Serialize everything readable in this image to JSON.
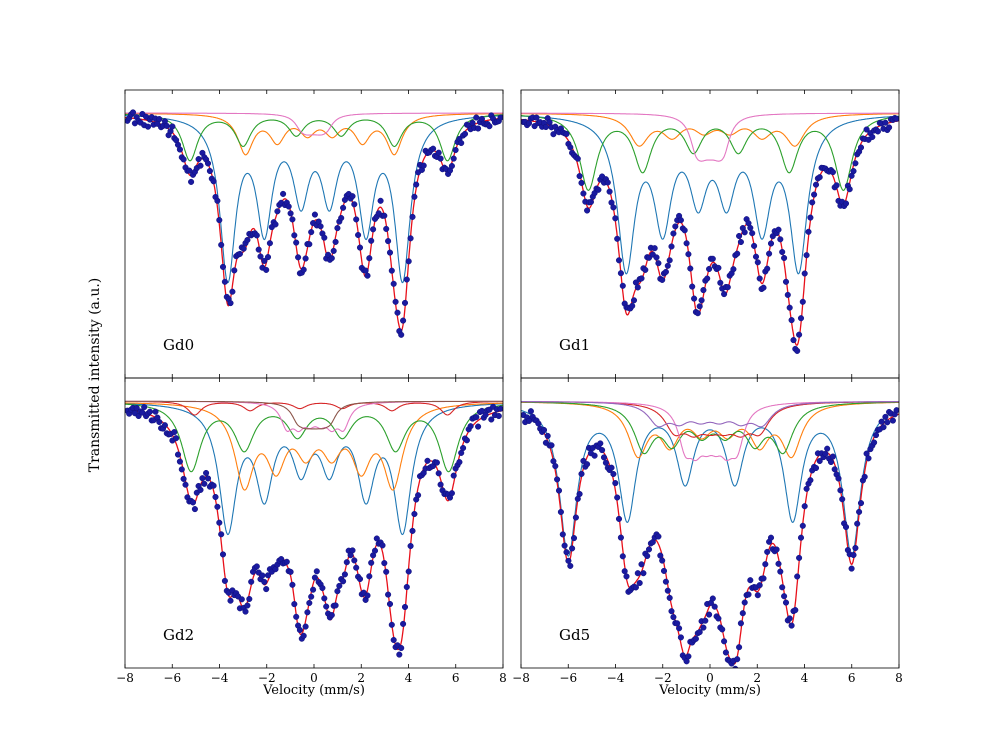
{
  "figure": {
    "ylabel": "Transmitted intensity (a.u.)",
    "xlabel": "Velocity (mm/s)"
  },
  "colors": {
    "data_points": "#1a1aa0",
    "data_edge": "#10107a",
    "total_fit": "#e8101a",
    "components": [
      "#1f77b4",
      "#ff7f0e",
      "#2ca02c",
      "#d62728",
      "#e377c2",
      "#9467bd",
      "#8c564b"
    ]
  },
  "chart_data": [
    {
      "type": "scatter",
      "panel": "top-left",
      "label": "Gd0",
      "xlim": [
        -8,
        8
      ],
      "xticks": [
        "−8",
        "−6",
        "−4",
        "−2",
        "0",
        "2",
        "4",
        "6",
        "8"
      ],
      "xlabel": "",
      "subspectra": [
        {
          "color": "#1f77b4",
          "center": 0.05,
          "hf": [
            7.4,
            4.3,
            1.2
          ],
          "w": 0.4,
          "a": [
            0.62,
            0.42,
            0.3
          ]
        },
        {
          "color": "#ff7f0e",
          "center": 0.25,
          "hf": [
            6.3,
            3.6,
            1.05
          ],
          "w": 0.4,
          "a": [
            0.15,
            0.1,
            0.07
          ]
        },
        {
          "color": "#2ca02c",
          "center": 0.2,
          "hf": [
            10.9,
            6.4,
            1.9
          ],
          "w": 0.4,
          "a": [
            0.18,
            0.12,
            0.08
          ]
        },
        {
          "color": "#e377c2",
          "center": 0.0,
          "hf": [
            1.1,
            0.6,
            0.2
          ],
          "w": 0.3,
          "a": [
            0.04,
            0.03,
            0.02
          ]
        }
      ]
    },
    {
      "type": "scatter",
      "panel": "top-right",
      "label": "Gd1",
      "xlim": [
        -8,
        8
      ],
      "xticks": [
        "−8",
        "−6",
        "−4",
        "−2",
        "0",
        "2",
        "4",
        "6",
        "8"
      ],
      "xlabel": "",
      "subspectra": [
        {
          "color": "#1f77b4",
          "center": 0.1,
          "hf": [
            7.3,
            4.2,
            1.2
          ],
          "w": 0.45,
          "a": [
            0.6,
            0.42,
            0.3
          ]
        },
        {
          "color": "#ff7f0e",
          "center": 0.3,
          "hf": [
            6.6,
            3.8,
            1.1
          ],
          "w": 0.5,
          "a": [
            0.12,
            0.08,
            0.06
          ]
        },
        {
          "color": "#2ca02c",
          "center": 0.25,
          "hf": [
            10.8,
            6.2,
            1.9
          ],
          "w": 0.45,
          "a": [
            0.3,
            0.22,
            0.14
          ]
        },
        {
          "color": "#e377c2",
          "center": 0.0,
          "hf": [
            1.2,
            0.7,
            0.2
          ],
          "w": 0.3,
          "a": [
            0.1,
            0.07,
            0.05
          ]
        }
      ]
    },
    {
      "type": "scatter",
      "panel": "bottom-left",
      "label": "Gd2",
      "xlim": [
        -8,
        8
      ],
      "xticks": [
        "−8",
        "−6",
        "−4",
        "−2",
        "0",
        "2",
        "4",
        "6",
        "8"
      ],
      "xlabel": "Velocity (mm/s)",
      "subspectra": [
        {
          "color": "#1f77b4",
          "center": 0.05,
          "hf": [
            7.4,
            4.3,
            1.2
          ],
          "w": 0.45,
          "a": [
            0.55,
            0.38,
            0.26
          ]
        },
        {
          "color": "#ff7f0e",
          "center": 0.2,
          "hf": [
            6.3,
            3.6,
            1.1
          ],
          "w": 0.5,
          "a": [
            0.35,
            0.25,
            0.18
          ]
        },
        {
          "color": "#2ca02c",
          "center": 0.25,
          "hf": [
            10.9,
            6.4,
            1.9
          ],
          "w": 0.5,
          "a": [
            0.3,
            0.2,
            0.14
          ]
        },
        {
          "color": "#d62728",
          "center": 0.3,
          "hf": [
            10.7,
            6.0,
            1.8
          ],
          "w": 0.35,
          "a": [
            0.06,
            0.04,
            0.03
          ]
        },
        {
          "color": "#e377c2",
          "center": 0.05,
          "hf": [
            2.4,
            1.4,
            0.45
          ],
          "w": 0.3,
          "a": [
            0.1,
            0.08,
            0.06
          ]
        },
        {
          "color": "#8c564b",
          "center": 0.0,
          "hf": [
            1.4,
            0.8,
            0.25
          ],
          "w": 0.3,
          "a": [
            0.06,
            0.05,
            0.04
          ]
        }
      ]
    },
    {
      "type": "scatter",
      "panel": "bottom-right",
      "label": "Gd5",
      "xlim": [
        -8,
        8
      ],
      "xticks": [
        "−8",
        "−6",
        "−4",
        "−2",
        "0",
        "2",
        "4",
        "6",
        "8"
      ],
      "xlabel": "Velocity (mm/s)",
      "subspectra": [
        {
          "color": "#1f77b4",
          "center": 0.0,
          "hf": [
            12.0,
            7.0,
            2.1
          ],
          "w": 0.45,
          "a": [
            0.6,
            0.45,
            0.3
          ]
        },
        {
          "color": "#ff7f0e",
          "center": 0.2,
          "hf": [
            6.5,
            3.8,
            1.1
          ],
          "w": 0.5,
          "a": [
            0.2,
            0.15,
            0.1
          ]
        },
        {
          "color": "#2ca02c",
          "center": 0.15,
          "hf": [
            5.9,
            3.5,
            1.0
          ],
          "w": 0.5,
          "a": [
            0.18,
            0.14,
            0.1
          ]
        },
        {
          "color": "#d62728",
          "center": 0.3,
          "hf": [
            3.6,
            2.0,
            0.6
          ],
          "w": 0.5,
          "a": [
            0.1,
            0.08,
            0.06
          ]
        },
        {
          "color": "#e377c2",
          "center": 0.05,
          "hf": [
            2.2,
            1.3,
            0.4
          ],
          "w": 0.35,
          "a": [
            0.15,
            0.12,
            0.09
          ]
        },
        {
          "color": "#9467bd",
          "center": 0.0,
          "hf": [
            4.4,
            2.6,
            0.8
          ],
          "w": 0.5,
          "a": [
            0.08,
            0.06,
            0.05
          ]
        }
      ]
    }
  ]
}
